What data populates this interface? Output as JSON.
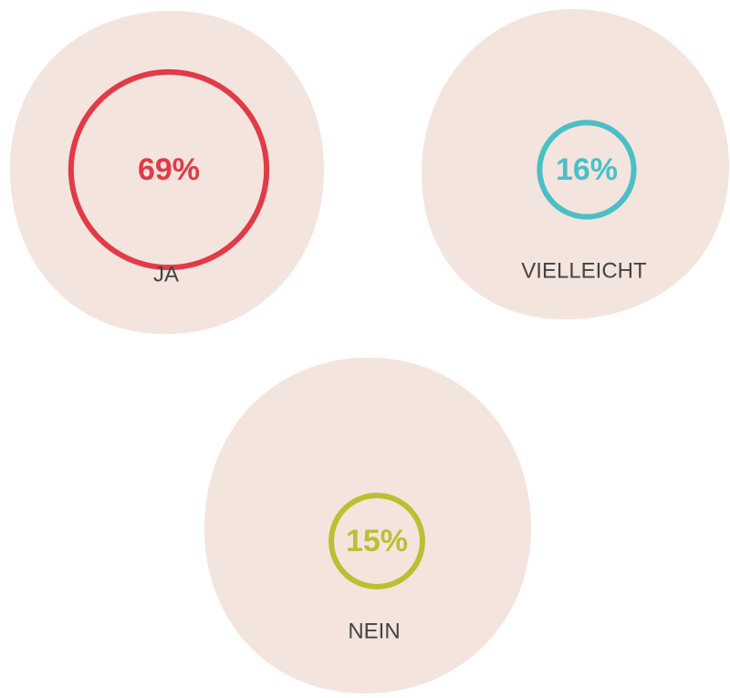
{
  "chart_data": {
    "type": "bubble",
    "categories": [
      "JA",
      "VIELLEICHT",
      "NEIN"
    ],
    "values": [
      69,
      16,
      15
    ],
    "value_labels": [
      "69%",
      "16%",
      "15%"
    ],
    "colors": [
      "#e23a47",
      "#4bbfc6",
      "#b9c032"
    ]
  }
}
